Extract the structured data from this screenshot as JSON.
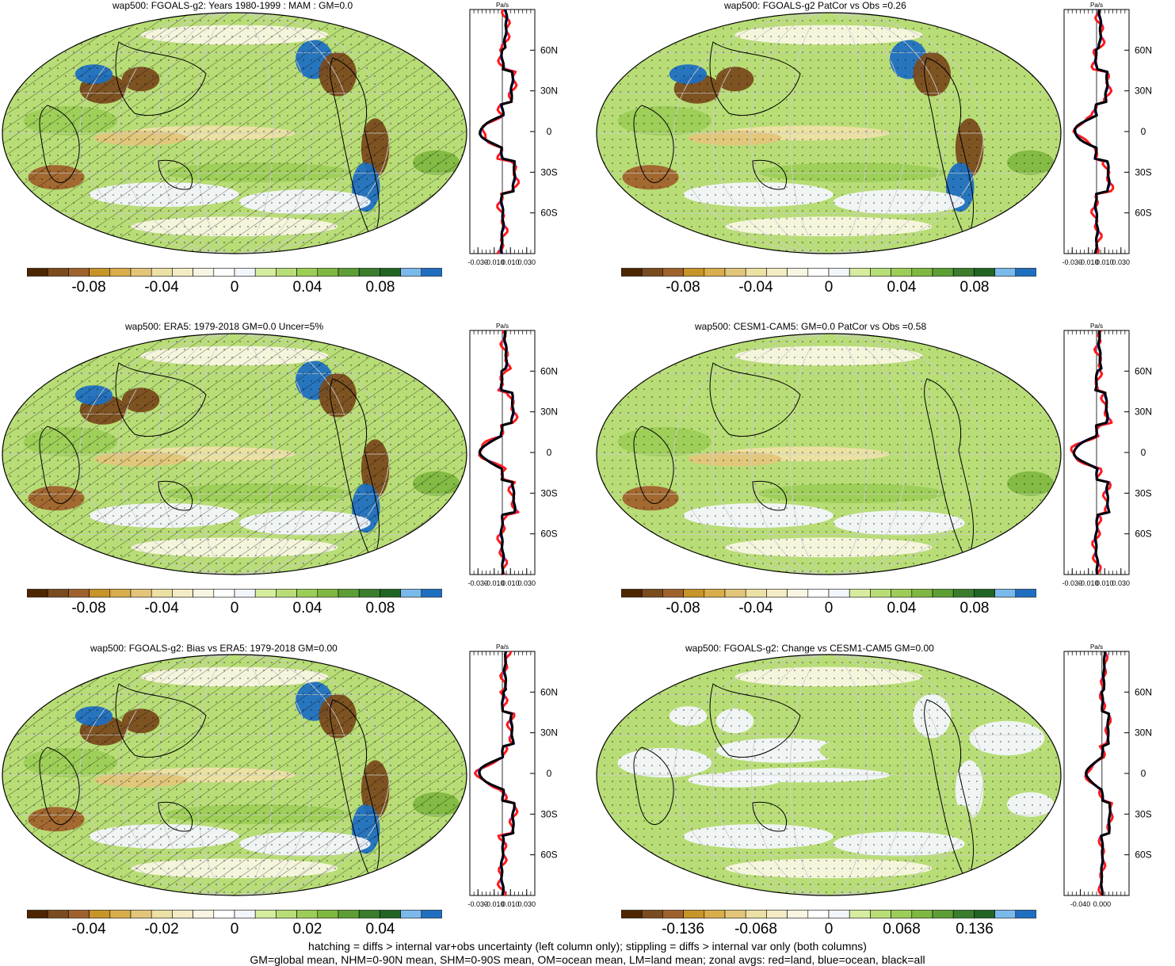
{
  "variable": "wap500",
  "units": "Pa/s",
  "colors": {
    "ocean_line": "#1a33ff",
    "land_line": "#ff1a1a",
    "all_line": "#000000",
    "palette": [
      "#4d2600",
      "#7a4b1e",
      "#a0622d",
      "#c79428",
      "#d9ad4a",
      "#e3c57a",
      "#ece0a4",
      "#f3ecc4",
      "#f8f5e2",
      "#ffffff",
      "#f2f5fb",
      "#d6ec9f",
      "#b8dd76",
      "#9ccd57",
      "#7fb841",
      "#5d9e34",
      "#3a7d2c",
      "#216423",
      "#7ab9ec",
      "#1f6fc1"
    ]
  },
  "panels": [
    {
      "id": "model-clim",
      "title": "wap500: FGOALS-g2: Years 1980-1999 : MAM : GM=0.0",
      "colorbar": {
        "labels": [
          "-0.08",
          "-0.04",
          "0",
          "0.04",
          "0.08"
        ],
        "symmetric_max": 0.1
      },
      "profile": {
        "xticks": [
          "-0.030",
          "-0.010",
          "0.010",
          "0.030"
        ],
        "xlim": [
          -0.04,
          0.04
        ],
        "yticks": [
          "60N",
          "30N",
          "0",
          "30S",
          "60S"
        ],
        "ylim": [
          -90,
          90
        ]
      }
    },
    {
      "id": "model-patcor",
      "title": "wap500: FGOALS-g2 PatCor vs Obs =0.26",
      "colorbar": {
        "labels": [
          "-0.08",
          "-0.04",
          "0",
          "0.04",
          "0.08"
        ],
        "symmetric_max": 0.1
      },
      "profile": {
        "xticks": [
          "-0.030",
          "-0.010",
          "0.010",
          "0.030"
        ],
        "xlim": [
          -0.04,
          0.04
        ],
        "yticks": [
          "60N",
          "30N",
          "0",
          "30S",
          "60S"
        ],
        "ylim": [
          -90,
          90
        ]
      }
    },
    {
      "id": "obs-clim",
      "title": "wap500: ERA5: 1979-2018 GM=0.0 Uncer=5%",
      "colorbar": {
        "labels": [
          "-0.08",
          "-0.04",
          "0",
          "0.04",
          "0.08"
        ],
        "symmetric_max": 0.1
      },
      "profile": {
        "xticks": [
          "-0.030",
          "-0.010",
          "0.010",
          "0.030"
        ],
        "xlim": [
          -0.04,
          0.04
        ],
        "yticks": [
          "60N",
          "30N",
          "0",
          "30S",
          "60S"
        ],
        "ylim": [
          -90,
          90
        ]
      }
    },
    {
      "id": "ref-model",
      "title": "wap500: CESM1-CAM5: GM=0.0 PatCor vs Obs =0.58",
      "colorbar": {
        "labels": [
          "-0.08",
          "-0.04",
          "0",
          "0.04",
          "0.08"
        ],
        "symmetric_max": 0.1
      },
      "profile": {
        "xticks": [
          "-0.030",
          "-0.010",
          "0.010",
          "0.030"
        ],
        "xlim": [
          -0.04,
          0.04
        ],
        "yticks": [
          "60N",
          "30N",
          "0",
          "30S",
          "60S"
        ],
        "ylim": [
          -90,
          90
        ]
      }
    },
    {
      "id": "bias",
      "title": "wap500: FGOALS-g2: Bias vs ERA5: 1979-2018 GM=0.00",
      "colorbar": {
        "labels": [
          "-0.04",
          "-0.02",
          "0",
          "0.02",
          "0.04"
        ],
        "symmetric_max": 0.05
      },
      "profile": {
        "xticks": [
          "-0.030",
          "-0.010",
          "0.010",
          "0.030"
        ],
        "xlim": [
          -0.04,
          0.04
        ],
        "yticks": [
          "60N",
          "30N",
          "0",
          "30S",
          "60S"
        ],
        "ylim": [
          -90,
          90
        ]
      }
    },
    {
      "id": "change",
      "title": "wap500: FGOALS-g2: Change vs CESM1-CAM5 GM=0.00",
      "colorbar": {
        "labels": [
          "-0.136",
          "-0.068",
          "0",
          "0.068",
          "0.136"
        ],
        "symmetric_max": 0.17
      },
      "profile": {
        "xticks": [
          "-0.040",
          "0.000"
        ],
        "xlim": [
          -0.07,
          0.05
        ],
        "yticks": [
          "60N",
          "30N",
          "0",
          "30S",
          "60S"
        ],
        "ylim": [
          -90,
          90
        ]
      }
    }
  ],
  "footer": {
    "line1": "hatching = diffs > internal var+obs uncertainty (left column only); stippling = diffs > internal var only (both columns)",
    "line2": "GM=global mean, NHM=0-90N mean, SHM=0-90S mean, OM=ocean mean, LM=land mean; zonal avgs: red=land, blue=ocean, black=all"
  }
}
